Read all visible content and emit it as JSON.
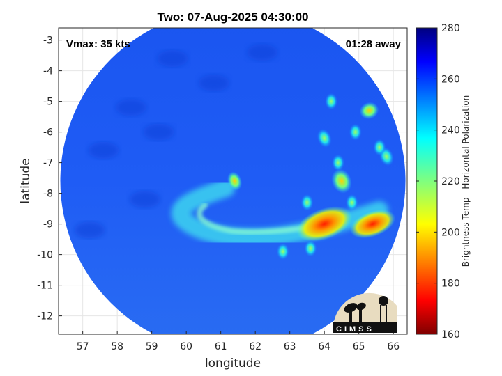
{
  "chart_data": {
    "type": "heatmap",
    "title": "Two: 07-Aug-2025 04:30:00",
    "xlabel": "longitude",
    "ylabel": "latitude",
    "xlim": [
      56.3,
      66.4
    ],
    "ylim": [
      -12.6,
      -2.6
    ],
    "xticks": [
      57,
      58,
      59,
      60,
      61,
      62,
      63,
      64,
      65,
      66
    ],
    "yticks": [
      -3,
      -4,
      -5,
      -6,
      -7,
      -8,
      -9,
      -10,
      -11,
      -12
    ],
    "grid": true,
    "swath": {
      "center": [
        61.35,
        -7.6
      ],
      "radius_deg": 5.0
    },
    "storm_center": [
      61.35,
      -7.6
    ],
    "annotations": {
      "left": "Vmax: 35 kts",
      "right": "01:28 away"
    },
    "colorbar": {
      "label": "Brightness Temp - Horizontal Polarization",
      "range": [
        160,
        280
      ],
      "ticks": [
        280,
        260,
        240,
        220,
        200,
        180,
        160
      ],
      "colormap": "jet"
    },
    "features": [
      {
        "kind": "background",
        "value": 262
      },
      {
        "kind": "spiral_band",
        "value": 238
      },
      {
        "kind": "eyewall_cell",
        "lon": 61.4,
        "lat": -7.6,
        "value": 205
      },
      {
        "kind": "convection",
        "lon": 64.0,
        "lat": -9.0,
        "value": 195
      },
      {
        "kind": "convection",
        "lon": 65.4,
        "lat": -9.0,
        "value": 192
      },
      {
        "kind": "convection",
        "lon": 65.3,
        "lat": -5.3,
        "value": 205
      },
      {
        "kind": "convection",
        "lon": 64.5,
        "lat": -7.6,
        "value": 215
      },
      {
        "kind": "convection",
        "lon": 64.0,
        "lat": -6.2,
        "value": 220
      },
      {
        "kind": "convection",
        "lon": 65.8,
        "lat": -6.8,
        "value": 225
      }
    ]
  },
  "logo": {
    "text": "CIMSS"
  }
}
